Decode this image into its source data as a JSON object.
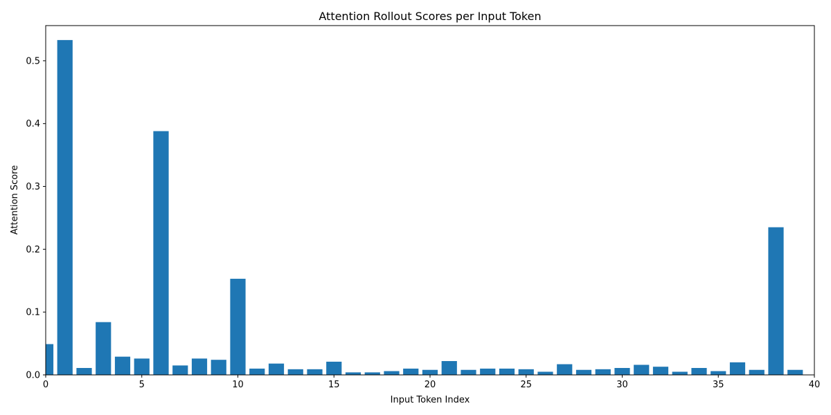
{
  "chart_data": {
    "type": "bar",
    "title": "Attention Rollout Scores per Input Token",
    "xlabel": "Input Token Index",
    "ylabel": "Attention Score",
    "xlim": [
      0,
      40
    ],
    "ylim": [
      0,
      0.556
    ],
    "xticks": [
      0,
      5,
      10,
      15,
      20,
      25,
      30,
      35,
      40
    ],
    "xtick_labels": [
      "0",
      "5",
      "10",
      "15",
      "20",
      "25",
      "30",
      "35",
      "40"
    ],
    "yticks": [
      0.0,
      0.1,
      0.2,
      0.3,
      0.4,
      0.5
    ],
    "ytick_labels": [
      "0.0",
      "0.1",
      "0.2",
      "0.3",
      "0.4",
      "0.5"
    ],
    "grid": false,
    "bar_color": "#1f77b4",
    "x": [
      0,
      1,
      2,
      3,
      4,
      5,
      6,
      7,
      8,
      9,
      10,
      11,
      12,
      13,
      14,
      15,
      16,
      17,
      18,
      19,
      20,
      21,
      22,
      23,
      24,
      25,
      26,
      27,
      28,
      29,
      30,
      31,
      32,
      33,
      34,
      35,
      36,
      37,
      38,
      39
    ],
    "values": [
      0.049,
      0.533,
      0.011,
      0.084,
      0.029,
      0.026,
      0.388,
      0.015,
      0.026,
      0.024,
      0.153,
      0.01,
      0.018,
      0.009,
      0.009,
      0.021,
      0.004,
      0.004,
      0.006,
      0.01,
      0.008,
      0.022,
      0.008,
      0.01,
      0.01,
      0.009,
      0.005,
      0.017,
      0.008,
      0.009,
      0.011,
      0.016,
      0.013,
      0.005,
      0.011,
      0.006,
      0.02,
      0.008,
      0.235,
      0.008
    ]
  }
}
